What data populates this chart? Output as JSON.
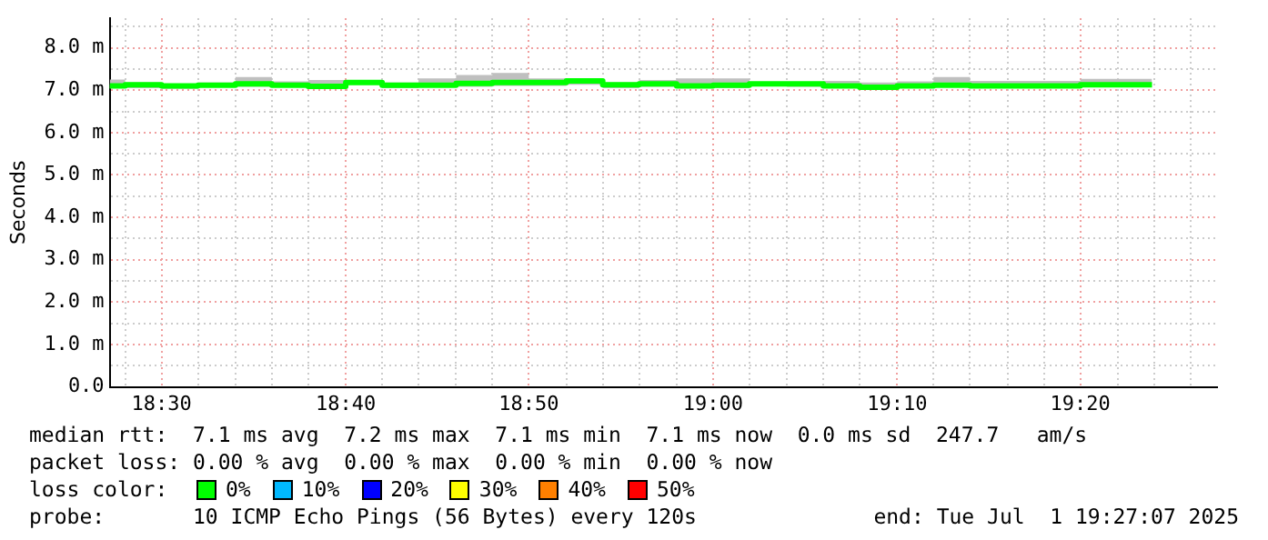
{
  "chart_data": {
    "type": "step",
    "ylabel": "Seconds",
    "x": [
      18.453,
      18.467,
      18.5,
      18.533,
      18.567,
      18.6,
      18.633,
      18.667,
      18.7,
      18.733,
      18.767,
      18.8,
      18.833,
      18.867,
      18.9,
      18.933,
      18.967,
      19,
      19.033,
      19.067,
      19.1,
      19.133,
      19.167,
      19.2,
      19.233,
      19.267,
      19.3,
      19.333,
      19.367,
      19.398
    ],
    "series": [
      {
        "color": "#00ff00",
        "values": [
          7.13,
          7.1,
          7.13,
          7.1,
          7.12,
          7.15,
          7.12,
          7.09,
          7.18,
          7.12,
          7.12,
          7.16,
          7.18,
          7.18,
          7.22,
          7.13,
          7.15,
          7.1,
          7.12,
          7.15,
          7.15,
          7.1,
          7.07,
          7.1,
          7.12,
          7.1,
          7.1,
          7.1,
          7.13,
          7.13
        ],
        "lower": [
          7.08,
          7.05,
          7.05,
          7.03,
          7.08,
          7.08,
          7.08,
          7.07,
          7.13,
          7.05,
          7.07,
          7.08,
          7.1,
          7.1,
          7.13,
          7.05,
          7.08,
          7.05,
          7.05,
          7.1,
          7.08,
          7.08,
          7.05,
          7.08,
          7.08,
          7.05,
          7.05,
          7.05,
          7.08,
          7.08
        ],
        "upper": [
          7.3,
          7.25,
          7.18,
          7.15,
          7.18,
          7.31,
          7.21,
          7.24,
          7.24,
          7.18,
          7.28,
          7.36,
          7.41,
          7.28,
          7.28,
          7.18,
          7.24,
          7.28,
          7.28,
          7.18,
          7.18,
          7.22,
          7.18,
          7.21,
          7.31,
          7.22,
          7.22,
          7.22,
          7.27,
          7.27
        ]
      }
    ],
    "xlim": [
      18.453,
      19.457
    ],
    "xticks": [
      {
        "value": 18.467,
        "label": null
      },
      {
        "value": 18.5,
        "label": "18:30"
      },
      {
        "value": 18.533,
        "label": null
      },
      {
        "value": 18.567,
        "label": null
      },
      {
        "value": 18.6,
        "label": null
      },
      {
        "value": 18.633,
        "label": null
      },
      {
        "value": 18.667,
        "label": "18:40"
      },
      {
        "value": 18.7,
        "label": null
      },
      {
        "value": 18.733,
        "label": null
      },
      {
        "value": 18.767,
        "label": null
      },
      {
        "value": 18.8,
        "label": null
      },
      {
        "value": 18.833,
        "label": "18:50"
      },
      {
        "value": 18.867,
        "label": null
      },
      {
        "value": 18.9,
        "label": null
      },
      {
        "value": 18.933,
        "label": null
      },
      {
        "value": 18.967,
        "label": null
      },
      {
        "value": 19,
        "label": "19:00"
      },
      {
        "value": 19.033,
        "label": null
      },
      {
        "value": 19.067,
        "label": null
      },
      {
        "value": 19.1,
        "label": null
      },
      {
        "value": 19.133,
        "label": null
      },
      {
        "value": 19.167,
        "label": "19:10"
      },
      {
        "value": 19.2,
        "label": null
      },
      {
        "value": 19.233,
        "label": null
      },
      {
        "value": 19.267,
        "label": null
      },
      {
        "value": 19.3,
        "label": null
      },
      {
        "value": 19.333,
        "label": "19:20"
      },
      {
        "value": 19.367,
        "label": null
      },
      {
        "value": 19.4,
        "label": null
      },
      {
        "value": 19.433,
        "label": null
      }
    ],
    "ylim": [
      0,
      8.7
    ],
    "yticks": [
      {
        "value": 0,
        "label": "0.0"
      },
      {
        "value": 0.5,
        "label": null
      },
      {
        "value": 1,
        "label": "1.0 m"
      },
      {
        "value": 1.5,
        "label": null
      },
      {
        "value": 2,
        "label": "2.0 m"
      },
      {
        "value": 2.5,
        "label": null
      },
      {
        "value": 3,
        "label": "3.0 m"
      },
      {
        "value": 3.5,
        "label": null
      },
      {
        "value": 4,
        "label": "4.0 m"
      },
      {
        "value": 4.5,
        "label": null
      },
      {
        "value": 5,
        "label": "5.0 m"
      },
      {
        "value": 5.5,
        "label": null
      },
      {
        "value": 6,
        "label": "6.0 m"
      },
      {
        "value": 6.5,
        "label": null
      },
      {
        "value": 7,
        "label": "7.0 m"
      },
      {
        "value": 7.5,
        "label": null
      },
      {
        "value": 8,
        "label": "8.0 m"
      },
      {
        "value": 8.5,
        "label": null
      }
    ],
    "grid": true,
    "legend": false,
    "annotations": [
      "median rtt:  7.1 ms avg  7.2 ms max  7.1 ms min  7.1 ms now  0.0 ms sd  247.7   am/s",
      "packet loss: 0.00 % avg  0.00 % max  0.00 % min  0.00 % now",
      "loss color:",
      "0%",
      "10%",
      "20%",
      "30%",
      "40%",
      "50%",
      "probe:       10 ICMP Echo Pings (56 Bytes) every 120s",
      "end: Tue Jul  1 19:27:07 2025"
    ]
  }
}
